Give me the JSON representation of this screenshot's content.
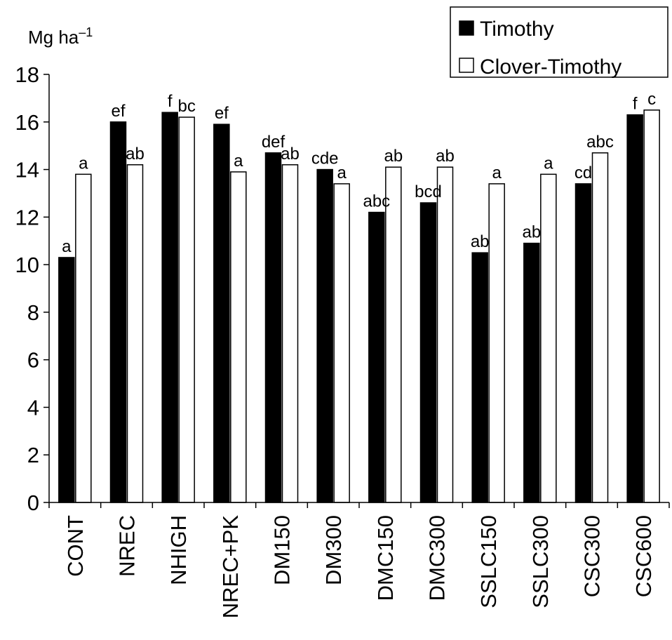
{
  "chart_data": {
    "type": "bar",
    "ylabel": "Mg ha⁻¹",
    "ylim": [
      0,
      18
    ],
    "yticks": [
      0,
      2,
      4,
      6,
      8,
      10,
      12,
      14,
      16,
      18
    ],
    "grid": false,
    "legend_position": "top-right",
    "categories": [
      "CONT",
      "NREC",
      "NHIGH",
      "NREC+PK",
      "DM150",
      "DM300",
      "DMC150",
      "DMC300",
      "SSLC150",
      "SSLC300",
      "CSC300",
      "CSC600"
    ],
    "series": [
      {
        "name": "Timothy",
        "color": "#000000",
        "values": [
          10.3,
          16.0,
          16.4,
          15.9,
          14.7,
          14.0,
          12.2,
          12.6,
          10.5,
          10.9,
          13.4,
          16.3
        ],
        "labels": [
          "a",
          "ef",
          "f",
          "ef",
          "def",
          "cde",
          "abc",
          "bcd",
          "ab",
          "ab",
          "cd",
          "f"
        ]
      },
      {
        "name": "Clover-Timothy",
        "color": "#ffffff",
        "values": [
          13.8,
          14.2,
          16.2,
          13.9,
          14.2,
          13.4,
          14.1,
          14.1,
          13.4,
          13.8,
          14.7,
          16.5
        ],
        "labels": [
          "a",
          "ab",
          "bc",
          "a",
          "ab",
          "a",
          "ab",
          "ab",
          "a",
          "a",
          "abc",
          "c"
        ]
      }
    ]
  }
}
